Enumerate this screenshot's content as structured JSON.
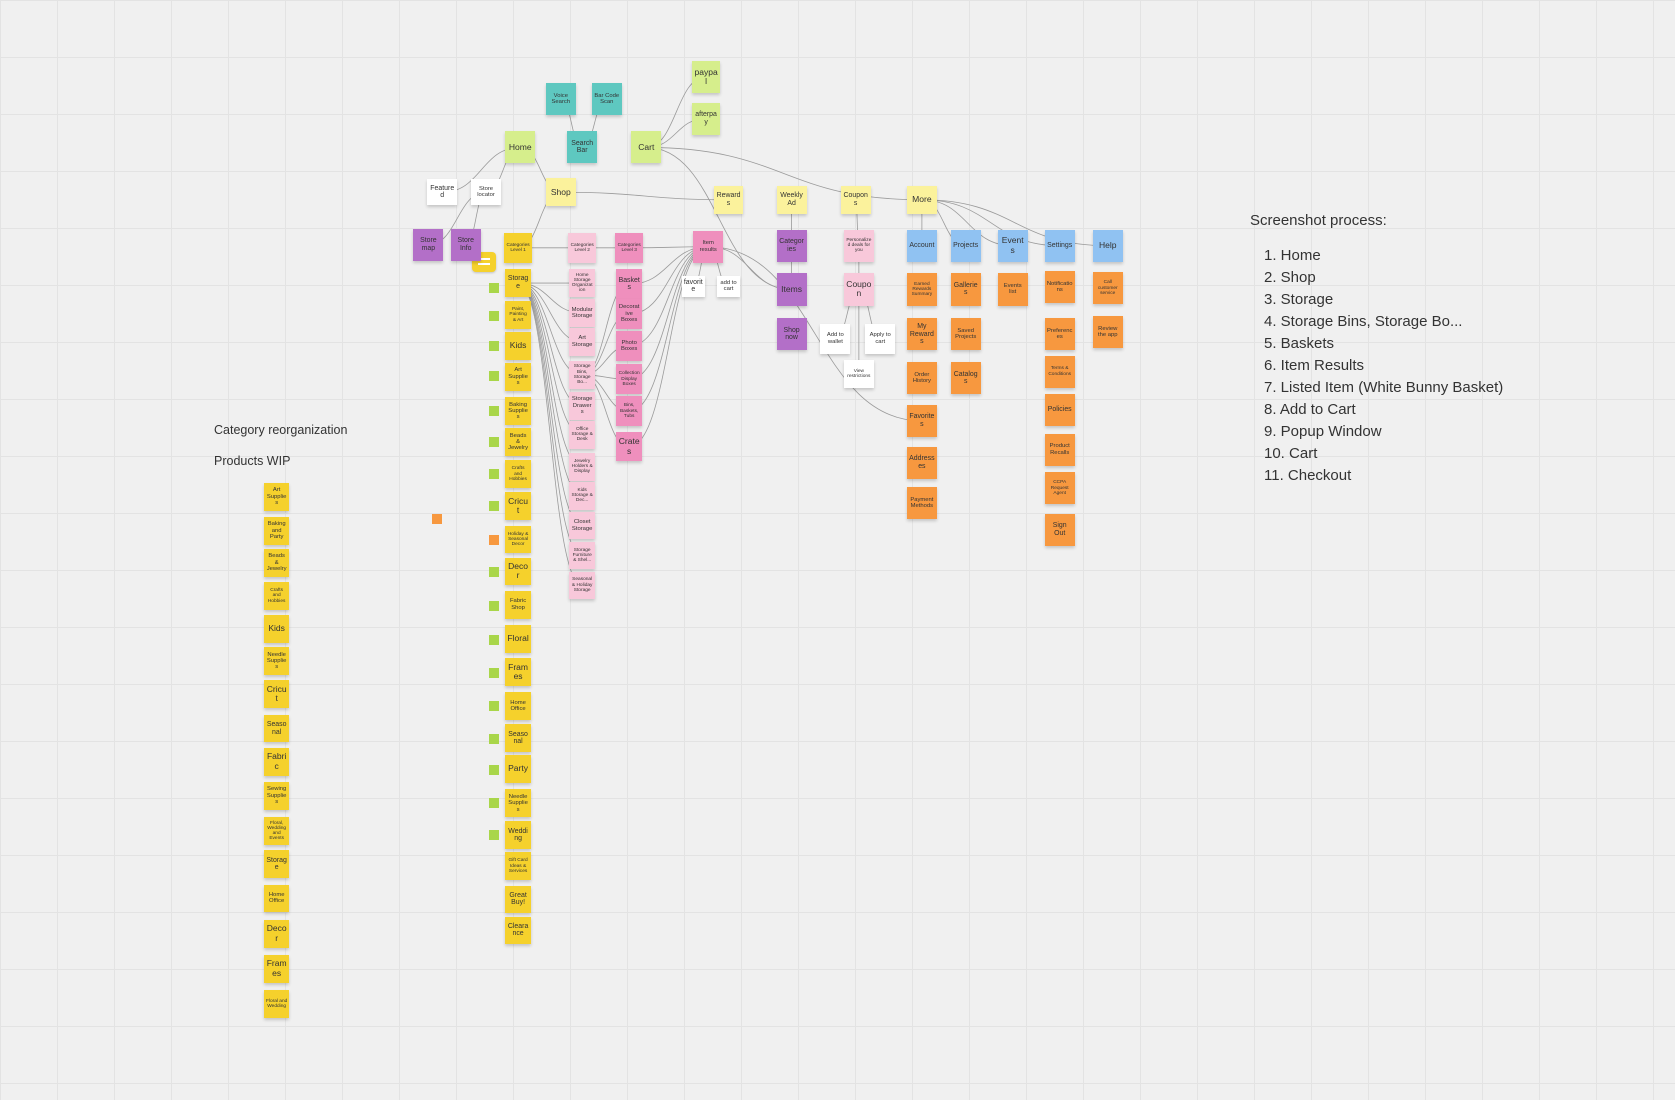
{
  "board": {
    "notes": [
      {
        "label": "paypal",
        "color": "#d6ee8c"
      },
      {
        "label": "afterpay",
        "color": "#d6ee8c"
      },
      {
        "label": "Voice Search",
        "color": "#5ec8c0"
      },
      {
        "label": "Bar Code Scan",
        "color": "#5ec8c0"
      },
      {
        "label": "Home",
        "color": "#d6ee8c"
      },
      {
        "label": "Search Bar",
        "color": "#5ec8c0"
      },
      {
        "label": "Cart",
        "color": "#d6ee8c"
      },
      {
        "label": "Featured",
        "color": "#ffffff"
      },
      {
        "label": "Store locator",
        "color": "#ffffff"
      },
      {
        "label": "Shop",
        "color": "#fbf29c"
      },
      {
        "label": "Rewards",
        "color": "#fbf29c"
      },
      {
        "label": "Weekly Ad",
        "color": "#fbf29c"
      },
      {
        "label": "Coupons",
        "color": "#fbf29c"
      },
      {
        "label": "More",
        "color": "#fbf29c"
      },
      {
        "label": "Store map",
        "color": "#b36fc8"
      },
      {
        "label": "Store Info",
        "color": "#b36fc8"
      },
      {
        "label": "Categories Level 1",
        "color": "#f5d12c"
      },
      {
        "label": "Categories Level 2",
        "color": "#f8c8da"
      },
      {
        "label": "Categories Level 3",
        "color": "#ef8fbd"
      },
      {
        "label": "Item results",
        "color": "#ef8fbd"
      },
      {
        "label": "Categories",
        "color": "#b36fc8"
      },
      {
        "label": "Personalized deals for you",
        "color": "#f8c8da"
      },
      {
        "label": "Account",
        "color": "#90c2f2"
      },
      {
        "label": "Projects",
        "color": "#90c2f2"
      },
      {
        "label": "Events",
        "color": "#90c2f2"
      },
      {
        "label": "Settings",
        "color": "#90c2f2"
      },
      {
        "label": "Help",
        "color": "#90c2f2"
      },
      {
        "label": "Items",
        "color": "#b36fc8"
      },
      {
        "label": "Shop now",
        "color": "#b36fc8"
      },
      {
        "label": "favorite",
        "color": "#ffffff"
      },
      {
        "label": "add to cart",
        "color": "#ffffff"
      },
      {
        "label": "Coupon",
        "color": "#f8c8da"
      },
      {
        "label": "Add to wallet",
        "color": "#ffffff"
      },
      {
        "label": "Apply to cart",
        "color": "#ffffff"
      },
      {
        "label": "View restrictions",
        "color": "#ffffff"
      },
      {
        "label": "Earned Rewards Summary",
        "color": "#f7983f"
      },
      {
        "label": "My Rewards",
        "color": "#f7983f"
      },
      {
        "label": "Order History",
        "color": "#f7983f"
      },
      {
        "label": "Favorites",
        "color": "#f7983f"
      },
      {
        "label": "Addresses",
        "color": "#f7983f"
      },
      {
        "label": "Payment Methods",
        "color": "#f7983f"
      },
      {
        "label": "Galleries",
        "color": "#f7983f"
      },
      {
        "label": "Saved Projects",
        "color": "#f7983f"
      },
      {
        "label": "Catalogs",
        "color": "#f7983f"
      },
      {
        "label": "Events list",
        "color": "#f7983f"
      },
      {
        "label": "Notifications",
        "color": "#f7983f"
      },
      {
        "label": "Preferences",
        "color": "#f7983f"
      },
      {
        "label": "Terms & Conditions",
        "color": "#f7983f"
      },
      {
        "label": "Policies",
        "color": "#f7983f"
      },
      {
        "label": "Product Recalls",
        "color": "#f7983f"
      },
      {
        "label": "CCPA Request Agent",
        "color": "#f7983f"
      },
      {
        "label": "Sign Out",
        "color": "#f7983f"
      },
      {
        "label": "Call customer service",
        "color": "#f7983f"
      },
      {
        "label": "Review the app",
        "color": "#f7983f"
      },
      {
        "label": "Storage",
        "color": "#f5d12c"
      },
      {
        "label": "Paint, Painting & Art",
        "color": "#f5d12c"
      },
      {
        "label": "Kids",
        "color": "#f5d12c"
      },
      {
        "label": "Art Supplies",
        "color": "#f5d12c"
      },
      {
        "label": "Baking Supplies",
        "color": "#f5d12c"
      },
      {
        "label": "Beads & Jewelry",
        "color": "#f5d12c"
      },
      {
        "label": "Crafts and Hobbies",
        "color": "#f5d12c"
      },
      {
        "label": "Cricut",
        "color": "#f5d12c"
      },
      {
        "label": "Holiday & Seasonal Decor",
        "color": "#f5d12c"
      },
      {
        "label": "Decor",
        "color": "#f5d12c"
      },
      {
        "label": "Fabric Shop",
        "color": "#f5d12c"
      },
      {
        "label": "Floral",
        "color": "#f5d12c"
      },
      {
        "label": "Frames",
        "color": "#f5d12c"
      },
      {
        "label": "Home Office",
        "color": "#f5d12c"
      },
      {
        "label": "Seasonal",
        "color": "#f5d12c"
      },
      {
        "label": "Party",
        "color": "#f5d12c"
      },
      {
        "label": "Needle Supplies",
        "color": "#f5d12c"
      },
      {
        "label": "Wedding",
        "color": "#f5d12c"
      },
      {
        "label": "Gift Card Ideas & Services",
        "color": "#f5d12c"
      },
      {
        "label": "Great Buy!",
        "color": "#f5d12c"
      },
      {
        "label": "Clearance",
        "color": "#f5d12c"
      },
      {
        "label": "Home Storage Organization",
        "color": "#f8c8da"
      },
      {
        "label": "Modular Storage",
        "color": "#f8c8da"
      },
      {
        "label": "Art Storage",
        "color": "#f8c8da"
      },
      {
        "label": "Storage Bins, Storage Bo...",
        "color": "#f8c8da"
      },
      {
        "label": "Storage Drawers",
        "color": "#f8c8da"
      },
      {
        "label": "Office Storage & Desk",
        "color": "#f8c8da"
      },
      {
        "label": "Jewelry Holders & Display",
        "color": "#f8c8da"
      },
      {
        "label": "Kids Storage & Dec...",
        "color": "#f8c8da"
      },
      {
        "label": "Closet Storage",
        "color": "#f8c8da"
      },
      {
        "label": "Storage Furniture & Shel...",
        "color": "#f8c8da"
      },
      {
        "label": "Seasonal & Holiday Storage",
        "color": "#f8c8da"
      },
      {
        "label": "Baskets",
        "color": "#ef8fbd"
      },
      {
        "label": "Decorative Boxes",
        "color": "#ef8fbd"
      },
      {
        "label": "Photo Boxes",
        "color": "#ef8fbd"
      },
      {
        "label": "Collection Display Boxes",
        "color": "#ef8fbd"
      },
      {
        "label": "Bins, Baskets, Tubs",
        "color": "#ef8fbd"
      },
      {
        "label": "Crates",
        "color": "#ef8fbd"
      },
      {
        "label": "Art Supplies",
        "color": "#f5d12c"
      },
      {
        "label": "Baking and Party",
        "color": "#f5d12c"
      },
      {
        "label": "Beads & Jewelry",
        "color": "#f5d12c"
      },
      {
        "label": "Crafts and Hobbies",
        "color": "#f5d12c"
      },
      {
        "label": "Kids",
        "color": "#f5d12c"
      },
      {
        "label": "Needle Supplies",
        "color": "#f5d12c"
      },
      {
        "label": "Cricut",
        "color": "#f5d12c"
      },
      {
        "label": "Seasonal",
        "color": "#f5d12c"
      },
      {
        "label": "Fabric",
        "color": "#f5d12c"
      },
      {
        "label": "Sewing Supplies",
        "color": "#f5d12c"
      },
      {
        "label": "Floral, Wedding and Events",
        "color": "#f5d12c"
      },
      {
        "label": "Storage",
        "color": "#f5d12c"
      },
      {
        "label": "Home Office",
        "color": "#f5d12c"
      },
      {
        "label": "Decor",
        "color": "#f5d12c"
      },
      {
        "label": "Frames",
        "color": "#f5d12c"
      },
      {
        "label": "Floral and Wedding",
        "color": "#f5d12c"
      }
    ]
  },
  "side_labels": [
    "Category reorganization",
    "Products WIP"
  ],
  "process": {
    "title": "Screenshot process:",
    "steps": [
      "1. Home",
      "2. Shop",
      "3. Storage",
      "4. Storage Bins, Storage Bo...",
      "5. Baskets",
      "6.  Item Results",
      "7. Listed Item (White Bunny Basket)",
      "8. Add to Cart",
      "9. Popup Window",
      "10. Cart",
      "11. Checkout"
    ]
  }
}
